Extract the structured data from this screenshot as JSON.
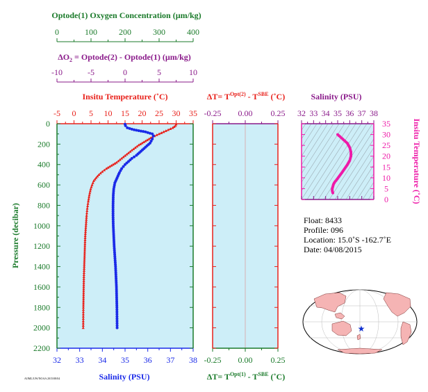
{
  "colors": {
    "green": "#1a7a2a",
    "purple": "#8a1a8a",
    "red": "#e8201a",
    "magenta": "#ee1aa8",
    "blue": "#1a2ae8",
    "black": "#000000",
    "panel_fill": "#cdeef8",
    "land": "#f5b4b4",
    "ocean": "#ffffff",
    "marker": "#1030d0"
  },
  "axes": {
    "oxygen": {
      "title": "Optode(1) Oxygen Concentration (µm/kg)",
      "ticks": [
        "0",
        "100",
        "200",
        "300",
        "400"
      ]
    },
    "delta_o2": {
      "title_prefix": "ΔO",
      "title_sub": "2",
      "title_rest": " = Optode(2) - Optode(1)   (µm/kg)",
      "ticks": [
        "-10",
        "-5",
        "0",
        "5",
        "10"
      ]
    },
    "temperature_top": {
      "title": "Insitu Temperature (˚C)",
      "ticks": [
        "-5",
        "0",
        "5",
        "10",
        "15",
        "20",
        "25",
        "30",
        "35"
      ]
    },
    "salinity_bottom": {
      "title": "Salinity (PSU)",
      "ticks": [
        "32",
        "33",
        "34",
        "35",
        "36",
        "37",
        "38"
      ]
    },
    "pressure": {
      "title": "Pressure (decibar)",
      "ticks": [
        "0",
        "200",
        "400",
        "600",
        "800",
        "1000",
        "1200",
        "1400",
        "1600",
        "1800",
        "2000",
        "2200"
      ]
    },
    "dt_top": {
      "title_a": "ΔT= T",
      "title_sup1": "Opt(2)",
      "title_b": " - T",
      "title_sup2": "SBE",
      "title_c": " (˚C)",
      "ticks": [
        "-0.25",
        "0.00",
        "0.25"
      ]
    },
    "dt_bottom": {
      "title_a": "ΔT= T",
      "title_sup1": "Opt(1)",
      "title_b": " - T",
      "title_sup2": "SBE",
      "title_c": " (˚C)",
      "ticks": [
        "-0.25",
        "0.00",
        "0.25"
      ]
    },
    "ts_salinity": {
      "title": "Salinity (PSU)",
      "ticks": [
        "32",
        "33",
        "34",
        "35",
        "36",
        "37",
        "38"
      ]
    },
    "ts_temperature": {
      "title": "Insitu Temperature (˚C)",
      "ticks": [
        "0",
        "5",
        "10",
        "15",
        "20",
        "25",
        "30",
        "35"
      ]
    }
  },
  "info": {
    "float": "Float:  8433",
    "profile": "Profile:  096",
    "location": "Location:  15.0˚S  -162.7˚E",
    "date": "Date:  04/08/2015"
  },
  "footer_code": "AOML/UW/NOAA 2015/08/04",
  "chart_data": [
    {
      "type": "line",
      "name": "temperature",
      "xlabel": "Insitu Temperature (˚C)",
      "ylabel": "Pressure (decibar)",
      "xlim": [
        -5,
        35
      ],
      "ylim": [
        2200,
        0
      ],
      "x": [
        30.0,
        29.8,
        29.0,
        27.0,
        25.0,
        23.0,
        21.0,
        19.0,
        17.0,
        15.5,
        14.0,
        12.5,
        11.0,
        9.5,
        8.3,
        7.3,
        6.5,
        5.8,
        5.3,
        4.9,
        4.5,
        4.2,
        3.9,
        3.7,
        3.5,
        3.3,
        3.2,
        3.1,
        3.0,
        2.9,
        2.85,
        2.8,
        2.75,
        2.7
      ],
      "y": [
        5,
        20,
        40,
        70,
        100,
        130,
        170,
        210,
        260,
        300,
        340,
        380,
        410,
        440,
        470,
        500,
        530,
        560,
        600,
        640,
        700,
        760,
        830,
        900,
        1000,
        1100,
        1200,
        1300,
        1400,
        1500,
        1600,
        1700,
        1800,
        2000
      ]
    },
    {
      "type": "line",
      "name": "salinity",
      "xlabel": "Salinity (PSU)",
      "ylabel": "Pressure (decibar)",
      "xlim": [
        32,
        38
      ],
      "ylim": [
        2200,
        0
      ],
      "x": [
        35.0,
        35.02,
        35.1,
        35.4,
        35.9,
        36.2,
        36.25,
        36.2,
        36.1,
        35.9,
        35.7,
        35.5,
        35.3,
        35.15,
        35.0,
        34.85,
        34.75,
        34.65,
        34.55,
        34.5,
        34.48,
        34.47,
        34.47,
        34.48,
        34.5,
        34.52,
        34.55,
        34.58,
        34.6,
        34.62,
        34.63,
        34.64,
        34.65
      ],
      "y": [
        5,
        20,
        40,
        60,
        80,
        100,
        120,
        150,
        190,
        230,
        270,
        310,
        340,
        370,
        400,
        440,
        480,
        530,
        580,
        640,
        700,
        800,
        900,
        1000,
        1100,
        1200,
        1300,
        1400,
        1500,
        1600,
        1700,
        1800,
        2000
      ]
    },
    {
      "type": "line",
      "name": "delta_T",
      "xlabel": "ΔT (˚C)",
      "ylabel": "Pressure (decibar)",
      "xlim": [
        -0.25,
        0.25
      ],
      "ylim": [
        2200,
        0
      ],
      "x": [],
      "y": []
    },
    {
      "type": "scatter",
      "name": "T-S diagram",
      "xlabel": "Salinity (PSU)",
      "ylabel": "Insitu Temperature (˚C)",
      "xlim": [
        32,
        38
      ],
      "ylim": [
        0,
        35
      ],
      "x": [
        35.0,
        35.2,
        35.5,
        35.8,
        36.0,
        36.1,
        36.1,
        36.0,
        35.8,
        35.55,
        35.3,
        35.1,
        34.9,
        34.75,
        34.65,
        34.6,
        34.55,
        34.55,
        34.6
      ],
      "y": [
        30.0,
        29.0,
        27.5,
        26.0,
        24.0,
        22.0,
        20.0,
        18.0,
        16.0,
        14.0,
        12.0,
        10.5,
        9.0,
        8.0,
        7.0,
        6.0,
        5.0,
        4.0,
        3.0
      ]
    }
  ]
}
